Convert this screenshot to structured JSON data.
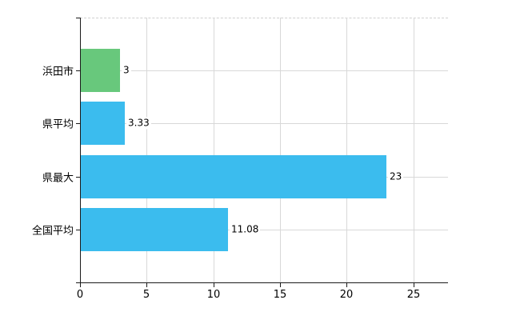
{
  "chart_data": {
    "type": "bar",
    "orientation": "horizontal",
    "title": "",
    "xlabel": "",
    "ylabel": "",
    "categories": [
      "浜田市",
      "県平均",
      "県最大",
      "全国平均"
    ],
    "values": [
      3,
      3.33,
      23,
      11.08
    ],
    "value_labels": [
      "3",
      "3.33",
      "23",
      "11.08"
    ],
    "bar_colors": [
      "#68c87c",
      "#3bbcee",
      "#3bbcee",
      "#3bbcee"
    ],
    "xticks": [
      0,
      5,
      10,
      15,
      20,
      25
    ],
    "xtick_labels": [
      "0",
      "5",
      "10",
      "15",
      "20",
      "25"
    ],
    "xlim": [
      0,
      27.6
    ],
    "grid": true,
    "legend": false,
    "colors": {
      "axis": "#1a1a1a",
      "gridline": "#d8d8d8",
      "top_border": "#cfcfcf",
      "text": "#000000",
      "background": "#ffffff"
    }
  }
}
